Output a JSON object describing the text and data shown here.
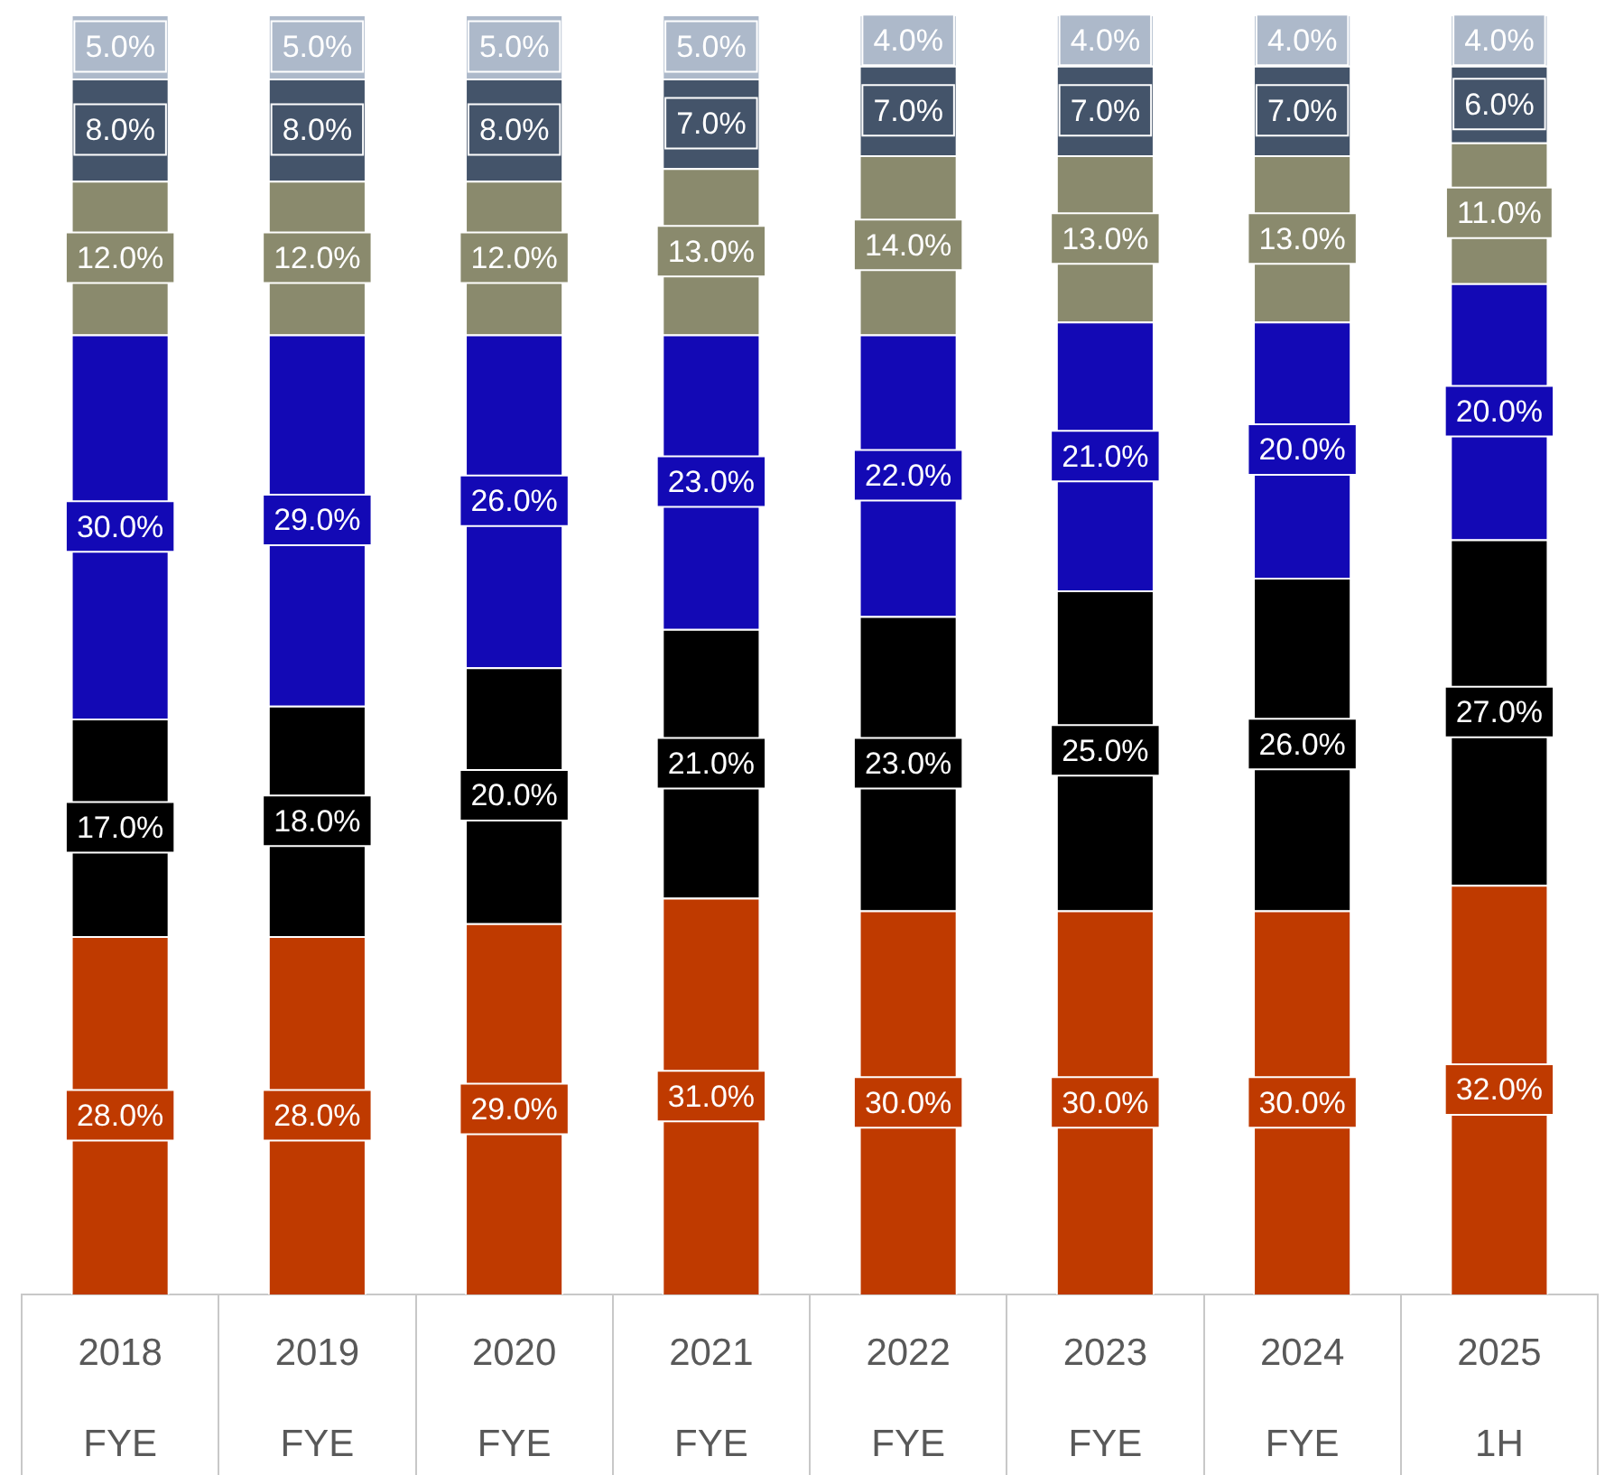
{
  "chart_data": {
    "type": "bar",
    "stacked": true,
    "tick_labels": "x",
    "ylim": [
      0,
      100
    ],
    "categories": [
      "2018 FYE",
      "2019 FYE",
      "2020 FYE",
      "2021 FYE",
      "2022 FYE",
      "2023 FYE",
      "2024 FYE",
      "2025 1H"
    ],
    "series": [
      {
        "color": "#bf3a00",
        "values": [
          28,
          28,
          29,
          31,
          30,
          30,
          30,
          32
        ],
        "value_labels": [
          "28.0%",
          "28.0%",
          "29.0%",
          "31.0%",
          "30.0%",
          "30.0%",
          "30.0%",
          "32.0%"
        ]
      },
      {
        "color": "#000000",
        "values": [
          17,
          18,
          20,
          21,
          23,
          25,
          26,
          27
        ],
        "value_labels": [
          "17.0%",
          "18.0%",
          "20.0%",
          "21.0%",
          "23.0%",
          "25.0%",
          "26.0%",
          "27.0%"
        ]
      },
      {
        "color": "#1309b5",
        "values": [
          30,
          29,
          26,
          23,
          22,
          21,
          20,
          20
        ],
        "value_labels": [
          "30.0%",
          "29.0%",
          "26.0%",
          "23.0%",
          "22.0%",
          "21.0%",
          "20.0%",
          "20.0%"
        ]
      },
      {
        "color": "#8a8a6d",
        "values": [
          12,
          12,
          12,
          13,
          14,
          13,
          13,
          11
        ],
        "value_labels": [
          "12.0%",
          "12.0%",
          "12.0%",
          "13.0%",
          "14.0%",
          "13.0%",
          "13.0%",
          "11.0%"
        ]
      },
      {
        "color": "#44546a",
        "values": [
          8,
          8,
          8,
          7,
          7,
          7,
          7,
          6
        ],
        "value_labels": [
          "8.0%",
          "8.0%",
          "8.0%",
          "7.0%",
          "7.0%",
          "7.0%",
          "7.0%",
          "6.0%"
        ]
      },
      {
        "color": "#adb9ca",
        "values": [
          5,
          5,
          5,
          5,
          4,
          4,
          4,
          4
        ],
        "value_labels": [
          "5.0%",
          "5.0%",
          "5.0%",
          "5.0%",
          "4.0%",
          "4.0%",
          "4.0%",
          "4.0%"
        ]
      }
    ]
  }
}
